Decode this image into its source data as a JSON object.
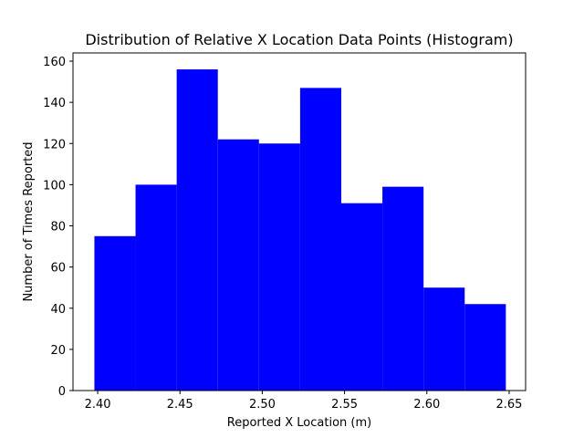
{
  "chart_data": {
    "type": "bar",
    "title": "Distribution of Relative X Location Data Points (Histogram)",
    "xlabel": "Reported X Location (m)",
    "ylabel": "Number of Times Reported",
    "bin_edges": [
      2.398,
      2.423,
      2.448,
      2.473,
      2.498,
      2.523,
      2.548,
      2.573,
      2.598,
      2.623,
      2.648
    ],
    "values": [
      75,
      100,
      156,
      122,
      120,
      147,
      91,
      99,
      50,
      42
    ],
    "xlim": [
      2.385,
      2.66
    ],
    "ylim": [
      0,
      164
    ],
    "xticks": [
      "2.40",
      "2.45",
      "2.50",
      "2.55",
      "2.60",
      "2.65"
    ],
    "yticks": [
      "0",
      "20",
      "40",
      "60",
      "80",
      "100",
      "120",
      "140",
      "160"
    ],
    "bar_color": "#0000ff",
    "grid": false
  }
}
